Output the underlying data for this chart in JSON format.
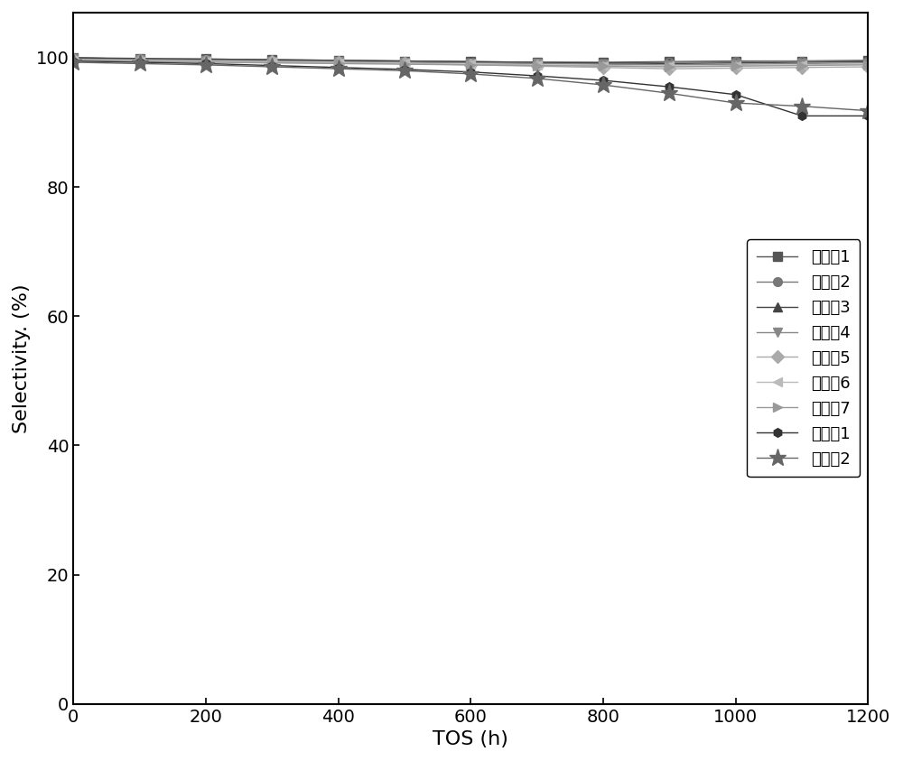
{
  "xlabel": "TOS (h)",
  "ylabel": "Selectivity. (%)",
  "xlim": [
    0,
    1200
  ],
  "ylim": [
    0,
    107
  ],
  "yticks": [
    0,
    20,
    40,
    60,
    80,
    100
  ],
  "xticks": [
    0,
    200,
    400,
    600,
    800,
    1000,
    1200
  ],
  "series": [
    {
      "label": "实施入1",
      "marker": "s",
      "color": "#555555",
      "x": [
        0,
        100,
        200,
        300,
        400,
        500,
        600,
        700,
        800,
        900,
        1000,
        1100,
        1200
      ],
      "y": [
        100,
        99.8,
        99.8,
        99.7,
        99.6,
        99.5,
        99.4,
        99.3,
        99.3,
        99.4,
        99.5,
        99.5,
        99.6
      ]
    },
    {
      "label": "实施入2",
      "marker": "o",
      "color": "#777777",
      "x": [
        0,
        100,
        200,
        300,
        400,
        500,
        600,
        700,
        800,
        900,
        1000,
        1100,
        1200
      ],
      "y": [
        100,
        99.8,
        99.7,
        99.6,
        99.5,
        99.4,
        99.3,
        99.2,
        99.1,
        99.3,
        99.4,
        99.5,
        99.5
      ]
    },
    {
      "label": "实施入3",
      "marker": "^",
      "color": "#444444",
      "x": [
        0,
        100,
        200,
        300,
        400,
        500,
        600,
        700,
        800,
        900,
        1000,
        1100,
        1200
      ],
      "y": [
        100,
        99.9,
        99.8,
        99.7,
        99.6,
        99.5,
        99.4,
        99.3,
        99.2,
        99.1,
        99.2,
        99.3,
        99.4
      ]
    },
    {
      "label": "实施入4",
      "marker": "v",
      "color": "#888888",
      "x": [
        0,
        100,
        200,
        300,
        400,
        500,
        600,
        700,
        800,
        900,
        1000,
        1100,
        1200
      ],
      "y": [
        99.8,
        99.7,
        99.6,
        99.5,
        99.4,
        99.3,
        99.2,
        99.1,
        99.0,
        98.9,
        99.0,
        99.1,
        99.2
      ]
    },
    {
      "label": "实施入5",
      "marker": "D",
      "color": "#aaaaaa",
      "x": [
        0,
        100,
        200,
        300,
        400,
        500,
        600,
        700,
        800,
        900,
        1000,
        1100,
        1200
      ],
      "y": [
        99.7,
        99.6,
        99.5,
        99.4,
        99.3,
        99.1,
        98.9,
        98.7,
        98.5,
        98.3,
        98.4,
        98.5,
        98.6
      ]
    },
    {
      "label": "实施入6",
      "marker": "<",
      "color": "#bbbbbb",
      "x": [
        0,
        100,
        200,
        300,
        400,
        500,
        600,
        700,
        800,
        900,
        1000,
        1100,
        1200
      ],
      "y": [
        99.6,
        99.5,
        99.4,
        99.3,
        99.2,
        99.1,
        99.0,
        98.9,
        98.8,
        98.7,
        98.8,
        98.9,
        99.0
      ]
    },
    {
      "label": "实施入7",
      "marker": ">",
      "color": "#999999",
      "x": [
        0,
        100,
        200,
        300,
        400,
        500,
        600,
        700,
        800,
        900,
        1000,
        1100,
        1200
      ],
      "y": [
        99.5,
        99.4,
        99.3,
        99.2,
        99.1,
        99.0,
        98.9,
        98.8,
        98.7,
        98.6,
        98.7,
        98.8,
        98.9
      ]
    },
    {
      "label": "对比入1",
      "marker": "h",
      "color": "#333333",
      "x": [
        0,
        100,
        200,
        300,
        400,
        500,
        600,
        700,
        800,
        900,
        1000,
        1100,
        1200
      ],
      "y": [
        99.5,
        99.3,
        99.1,
        98.8,
        98.5,
        98.2,
        97.8,
        97.2,
        96.5,
        95.5,
        94.3,
        91.0,
        91.0
      ]
    },
    {
      "label": "对比入2",
      "marker": "*",
      "color": "#666666",
      "x": [
        0,
        100,
        200,
        300,
        400,
        500,
        600,
        700,
        800,
        900,
        1000,
        1100,
        1200
      ],
      "y": [
        99.3,
        99.1,
        98.9,
        98.6,
        98.3,
        98.0,
        97.5,
        96.8,
        95.8,
        94.5,
        93.0,
        92.5,
        91.8
      ]
    }
  ],
  "title": "",
  "figsize": [
    10.0,
    8.43
  ],
  "dpi": 100,
  "font_size": 14,
  "legend_fontsize": 13,
  "marker_size": 7,
  "linewidth": 1.0
}
